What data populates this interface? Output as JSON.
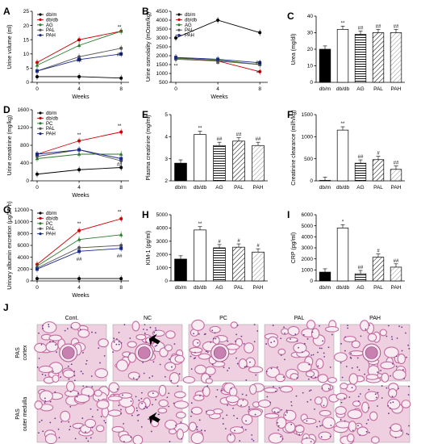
{
  "chart_data": [
    {
      "panel": "A",
      "type": "line",
      "x": [
        0,
        4,
        8
      ],
      "xticks": [
        0,
        2,
        4,
        6,
        8
      ],
      "xlabel": "Weeks",
      "ylabel": "Urine volume (ml)",
      "ylim": [
        0,
        25
      ],
      "yticks": [
        0,
        5,
        10,
        15,
        20,
        25
      ],
      "series": [
        {
          "name": "db/m",
          "values": [
            2,
            2,
            1.5
          ],
          "color": "#000000",
          "marker": "circle"
        },
        {
          "name": "db/db",
          "values": [
            7,
            15,
            18
          ],
          "color": "#cc0000",
          "marker": "circle"
        },
        {
          "name": "AG",
          "values": [
            6,
            13,
            18
          ],
          "color": "#2a7a2a",
          "marker": "triangle"
        },
        {
          "name": "PAL",
          "values": [
            4,
            9,
            12
          ],
          "color": "#555555",
          "marker": "circle"
        },
        {
          "name": "PAH",
          "values": [
            4,
            8,
            10
          ],
          "color": "#1a2a8a",
          "marker": "square"
        }
      ],
      "annotations": [
        {
          "x": 4,
          "y": 13,
          "text": "**"
        },
        {
          "x": 8,
          "y": 18,
          "text": "**"
        },
        {
          "x": 4,
          "y": 9,
          "text": "##"
        },
        {
          "x": 8,
          "y": 11,
          "text": "##"
        }
      ]
    },
    {
      "panel": "B",
      "type": "line",
      "x": [
        0,
        4,
        8
      ],
      "xlabel": "Weeks",
      "ylabel": "Urine osmolality (mOsm/kg)",
      "ylim": [
        500,
        4500
      ],
      "yticks": [
        500,
        1000,
        1500,
        2000,
        2500,
        3000,
        3500,
        4000,
        4500
      ],
      "series": [
        {
          "name": "db/m",
          "values": [
            3000,
            4000,
            3300
          ],
          "color": "#000000",
          "marker": "circle"
        },
        {
          "name": "db/db",
          "values": [
            1900,
            1700,
            1100
          ],
          "color": "#cc0000",
          "marker": "circle"
        },
        {
          "name": "AG",
          "values": [
            1850,
            1750,
            1500
          ],
          "color": "#2a7a2a",
          "marker": "triangle"
        },
        {
          "name": "PAL",
          "values": [
            1800,
            1700,
            1500
          ],
          "color": "#555555",
          "marker": "circle"
        },
        {
          "name": "PAH",
          "values": [
            1900,
            1800,
            1600
          ],
          "color": "#1a2a8a",
          "marker": "square"
        }
      ],
      "annotations": [
        {
          "x": 0,
          "y": 1200,
          "text": "**"
        },
        {
          "x": 4,
          "y": 1300,
          "text": "**"
        },
        {
          "x": 8,
          "y": 800,
          "text": "**"
        },
        {
          "x": 8,
          "y": 1800,
          "text": "##"
        }
      ]
    },
    {
      "panel": "C",
      "type": "bar",
      "categories": [
        "db/m",
        "db/db",
        "AG",
        "PAL",
        "PAH"
      ],
      "values": [
        20,
        32,
        29,
        30,
        30
      ],
      "ylabel": "Urea (mg/dl)",
      "ylim": [
        0,
        40
      ],
      "yticks": [
        0,
        10,
        20,
        30,
        40
      ],
      "labels": [
        "",
        "**",
        "##",
        "##",
        "##"
      ]
    },
    {
      "panel": "D",
      "type": "line",
      "x": [
        0,
        4,
        8
      ],
      "xlabel": "Weeks",
      "ylabel": "Urine creatinine (mg/kg)",
      "ylim": [
        0,
        1600
      ],
      "yticks": [
        0,
        400,
        800,
        1200,
        1600
      ],
      "series": [
        {
          "name": "db/m",
          "values": [
            150,
            250,
            300
          ],
          "color": "#000000",
          "marker": "circle"
        },
        {
          "name": "db/db",
          "values": [
            600,
            900,
            1100
          ],
          "color": "#cc0000",
          "marker": "circle"
        },
        {
          "name": "PC",
          "values": [
            500,
            600,
            600
          ],
          "color": "#2a7a2a",
          "marker": "triangle"
        },
        {
          "name": "PAL",
          "values": [
            550,
            700,
            450
          ],
          "color": "#555555",
          "marker": "circle"
        },
        {
          "name": "PAH",
          "values": [
            600,
            700,
            500
          ],
          "color": "#1a2a8a",
          "marker": "square"
        }
      ],
      "annotations": [
        {
          "x": 4,
          "y": 950,
          "text": "**"
        },
        {
          "x": 8,
          "y": 1150,
          "text": "**"
        },
        {
          "x": 8,
          "y": 450,
          "text": "##"
        }
      ]
    },
    {
      "panel": "E",
      "type": "bar",
      "categories": [
        "db/m",
        "db/db",
        "AG",
        "PAL",
        "PAH"
      ],
      "values": [
        2.8,
        4.1,
        3.6,
        3.8,
        3.6
      ],
      "ylabel": "Plasma creatinine (mg/ml)",
      "ylim": [
        2,
        5
      ],
      "yticks": [
        2,
        3,
        4,
        5
      ],
      "labels": [
        "",
        "**",
        "##",
        "##",
        "##"
      ]
    },
    {
      "panel": "F",
      "type": "bar",
      "categories": [
        "db/m",
        "db/db",
        "AG",
        "PAL",
        "PAH"
      ],
      "values": [
        10,
        1150,
        400,
        480,
        260
      ],
      "ylabel": "Creatinine clearance (ml/h/kg)",
      "ylim": [
        0,
        1500
      ],
      "yticks": [
        0,
        500,
        1000,
        1500
      ],
      "labels": [
        "",
        "**",
        "##",
        "#",
        "##"
      ]
    },
    {
      "panel": "G",
      "type": "line",
      "x": [
        0,
        4,
        8
      ],
      "xlabel": "Weeks",
      "ylabel": "Urinary albumin excretion (μg/24 h)",
      "ylim": [
        0,
        12000
      ],
      "yticks": [
        0,
        2000,
        4000,
        6000,
        8000,
        10000,
        12000
      ],
      "series": [
        {
          "name": "db/m",
          "values": [
            400,
            400,
            400
          ],
          "color": "#000000",
          "marker": "circle"
        },
        {
          "name": "db/db",
          "values": [
            2800,
            8500,
            10500
          ],
          "color": "#cc0000",
          "marker": "circle"
        },
        {
          "name": "PC",
          "values": [
            2500,
            7000,
            7800
          ],
          "color": "#2a7a2a",
          "marker": "triangle"
        },
        {
          "name": "PAL",
          "values": [
            2200,
            5600,
            6000
          ],
          "color": "#555555",
          "marker": "circle"
        },
        {
          "name": "PAH",
          "values": [
            2000,
            5000,
            5500
          ],
          "color": "#1a2a8a",
          "marker": "square"
        }
      ],
      "annotations": [
        {
          "x": 4,
          "y": 9000,
          "text": "**"
        },
        {
          "x": 8,
          "y": 11000,
          "text": "**"
        },
        {
          "x": 4,
          "y": 4200,
          "text": "##"
        },
        {
          "x": 8,
          "y": 4800,
          "text": "##"
        }
      ]
    },
    {
      "panel": "H",
      "type": "bar",
      "categories": [
        "db/m",
        "db/db",
        "AG",
        "PAL",
        "PAH"
      ],
      "values": [
        1650,
        3850,
        2500,
        2550,
        2180
      ],
      "ylabel": "KIM-1 (pg/ml)",
      "ylim": [
        0,
        5000
      ],
      "yticks": [
        0,
        1000,
        2000,
        3000,
        4000,
        5000
      ],
      "labels": [
        "",
        "**",
        "#",
        "#",
        "#"
      ]
    },
    {
      "panel": "I",
      "type": "bar",
      "categories": [
        "db/m",
        "db/db",
        "AG",
        "PAL",
        "PAH"
      ],
      "values": [
        800,
        4800,
        650,
        2150,
        1250
      ],
      "ylabel": "CRP (pg/ml)",
      "ylim": [
        0,
        6000
      ],
      "yticks": [
        0,
        1000,
        2000,
        3000,
        4000,
        5000,
        6000
      ],
      "labels": [
        "",
        "*",
        "##",
        "#",
        "##"
      ]
    }
  ],
  "panel_j": {
    "panel": "J",
    "columns": [
      "Cont.",
      "NC",
      "PC",
      "PAL",
      "PAH"
    ],
    "rows": [
      "PAS cortex",
      "PAS outer medulla"
    ],
    "tissue_color": "#d88ab8"
  }
}
